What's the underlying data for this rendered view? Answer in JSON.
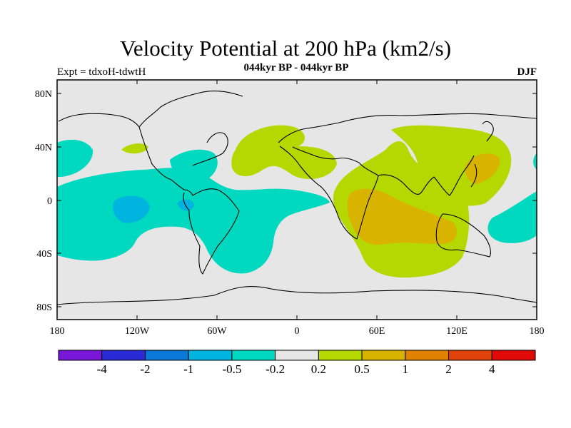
{
  "title": "Velocity Potential at 200 hPa (km2/s)",
  "subtitle": "044kyr BP - 044kyr BP",
  "experiment_label": "Expt = tdxoH-tdwtH",
  "season_label": "DJF",
  "axes": {
    "x_ticks": [
      "180",
      "120W",
      "60W",
      "0",
      "60E",
      "120E",
      "180"
    ],
    "y_ticks": [
      "80N",
      "40N",
      "0",
      "40S",
      "80S"
    ]
  },
  "colorbar": {
    "colors": [
      "#7a16d8",
      "#2a2bd6",
      "#0a78d6",
      "#00b4e0",
      "#00d8c0",
      "#e6e6e6",
      "#b4d800",
      "#d8b400",
      "#e08200",
      "#e0420a",
      "#e00a0a"
    ],
    "labels": [
      "-4",
      "-2",
      "-1",
      "-0.5",
      "-0.2",
      "0.2",
      "0.5",
      "1",
      "2",
      "4"
    ]
  },
  "palette": {
    "background": "#e6e6e6",
    "negative_weak": "#00d8c0",
    "negative_mid": "#00b4e0",
    "positive_weak": "#b4d800",
    "positive_mid": "#d8b400"
  }
}
